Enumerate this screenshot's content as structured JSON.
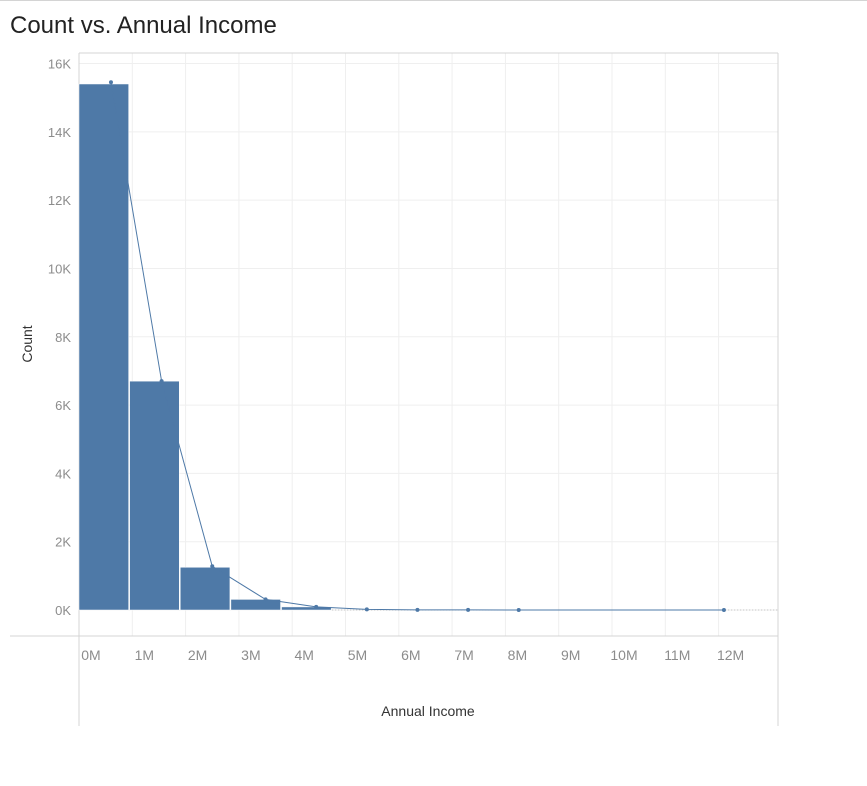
{
  "chart_data": {
    "type": "bar",
    "title": "Count vs. Annual Income",
    "xlabel": "Annual Income",
    "ylabel": "Count",
    "x_ticks": [
      "0M",
      "1M",
      "2M",
      "3M",
      "4M",
      "5M",
      "6M",
      "7M",
      "8M",
      "9M",
      "10M",
      "11M",
      "12M"
    ],
    "y_ticks": [
      "0K",
      "2K",
      "4K",
      "6K",
      "8K",
      "10K",
      "12K",
      "14K",
      "16K"
    ],
    "ylim": [
      0,
      16500
    ],
    "xlim": [
      0,
      12.6
    ],
    "grid": true,
    "bins": [
      {
        "start": 0.0,
        "end": 0.95,
        "count": 15400
      },
      {
        "start": 0.95,
        "end": 1.9,
        "count": 6700
      },
      {
        "start": 1.9,
        "end": 2.85,
        "count": 1250
      },
      {
        "start": 2.85,
        "end": 3.8,
        "count": 310
      },
      {
        "start": 3.8,
        "end": 4.75,
        "count": 90
      }
    ],
    "line_points": [
      {
        "x": 0.6,
        "y": 15450
      },
      {
        "x": 1.55,
        "y": 6700
      },
      {
        "x": 2.5,
        "y": 1280
      },
      {
        "x": 3.5,
        "y": 310
      },
      {
        "x": 4.45,
        "y": 90
      },
      {
        "x": 5.4,
        "y": 20
      },
      {
        "x": 6.35,
        "y": 5
      },
      {
        "x": 7.3,
        "y": 2
      },
      {
        "x": 8.25,
        "y": 1
      },
      {
        "x": 12.1,
        "y": 1
      }
    ],
    "colors": {
      "bar": "#4e79a7",
      "line": "#4e79a7",
      "grid": "#efefef",
      "axis": "#d4d4d4"
    }
  }
}
